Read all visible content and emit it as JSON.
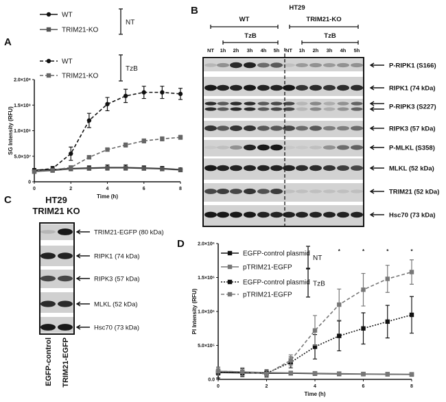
{
  "panels": {
    "a": "A",
    "b": "B",
    "c": "C",
    "d": "D"
  },
  "chart_data": [
    {
      "type": "line",
      "panel": "A",
      "xlabel": "Time (h)",
      "ylabel": "SG Intensity (RFU)",
      "xlim": [
        0,
        8
      ],
      "ylim": [
        0,
        200000000
      ],
      "xticks": [
        "0",
        "2",
        "4",
        "6",
        "8"
      ],
      "yticks": [
        "0",
        "5.0×10⁷",
        "1.0×10⁸",
        "1.5×10⁸",
        "2.0×10⁸"
      ],
      "x": [
        0,
        1,
        2,
        3,
        4,
        5,
        6,
        7,
        8
      ],
      "groups": [
        {
          "label": "NT",
          "series": [
            0,
            1
          ]
        },
        {
          "label": "TzB",
          "series": [
            2,
            3
          ]
        }
      ],
      "series": [
        {
          "name": "WT",
          "color": "#111111",
          "marker": "circle",
          "line": "solid",
          "values": [
            23000000,
            24000000,
            26000000,
            27000000,
            28000000,
            28000000,
            27000000,
            26000000,
            24000000
          ],
          "errors": [
            3000000,
            3000000,
            3000000,
            4000000,
            5000000,
            5000000,
            4000000,
            4000000,
            3000000
          ]
        },
        {
          "name": "TRIM21-KO",
          "color": "#555555",
          "marker": "square",
          "line": "solid",
          "values": [
            20000000,
            22000000,
            25000000,
            26000000,
            27000000,
            27000000,
            26000000,
            25000000,
            23000000
          ],
          "errors": [
            2000000,
            2000000,
            2000000,
            3000000,
            3000000,
            3000000,
            3000000,
            3000000,
            3000000
          ]
        },
        {
          "name": "WT",
          "color": "#111111",
          "marker": "circle",
          "line": "dashed",
          "values": [
            22000000,
            26000000,
            55000000,
            120000000,
            152000000,
            168000000,
            175000000,
            175000000,
            172000000
          ],
          "errors": [
            3000000,
            4000000,
            13000000,
            14000000,
            13000000,
            13000000,
            12000000,
            12000000,
            11000000
          ]
        },
        {
          "name": "TRIM21-KO",
          "color": "#666666",
          "marker": "square",
          "line": "dashed",
          "values": [
            20000000,
            23000000,
            28000000,
            48000000,
            63000000,
            72000000,
            80000000,
            84000000,
            87000000
          ],
          "errors": [
            2000000,
            2000000,
            3000000,
            3000000,
            3000000,
            4000000,
            4000000,
            4000000,
            4000000
          ]
        }
      ]
    },
    {
      "type": "line",
      "panel": "D",
      "xlabel": "Time (h)",
      "ylabel": "PI Intensity (RFU)",
      "xlim": [
        0,
        8
      ],
      "ylim": [
        0,
        2000000
      ],
      "xticks": [
        "0",
        "2",
        "4",
        "6",
        "8"
      ],
      "yticks": [
        "0.0",
        "5.0×10⁵",
        "1.0×10⁶",
        "1.5×10⁶",
        "2.0×10⁶"
      ],
      "x": [
        0,
        1,
        2,
        3,
        4,
        5,
        6,
        7,
        8
      ],
      "annotations": [
        {
          "x": 5,
          "text": "*"
        },
        {
          "x": 6,
          "text": "*"
        },
        {
          "x": 7,
          "text": "*"
        },
        {
          "x": 8,
          "text": "*"
        }
      ],
      "groups": [
        {
          "label": "NT",
          "series": [
            0,
            1
          ]
        },
        {
          "label": "TzB",
          "series": [
            2,
            3
          ]
        }
      ],
      "series": [
        {
          "name": "EGFP-control plasmid",
          "color": "#111111",
          "marker": "square",
          "line": "solid",
          "values": [
            100000,
            95000,
            90000,
            90000,
            85000,
            80000,
            78000,
            75000,
            72000
          ],
          "errors": [
            30000,
            30000,
            30000,
            20000,
            20000,
            15000,
            15000,
            15000,
            15000
          ]
        },
        {
          "name": "pTRIM21-EGFP",
          "color": "#777777",
          "marker": "square",
          "line": "solid",
          "values": [
            120000,
            110000,
            100000,
            95000,
            90000,
            85000,
            80000,
            78000,
            75000
          ],
          "errors": [
            40000,
            30000,
            30000,
            20000,
            20000,
            15000,
            15000,
            15000,
            15000
          ]
        },
        {
          "name": "EGFP-control plasmid",
          "color": "#111111",
          "marker": "square",
          "line": "dotted",
          "values": [
            100000,
            100000,
            90000,
            250000,
            480000,
            640000,
            750000,
            850000,
            950000
          ],
          "errors": [
            80000,
            60000,
            50000,
            80000,
            180000,
            220000,
            230000,
            240000,
            270000
          ]
        },
        {
          "name": "pTRIM21-EGFP",
          "color": "#777777",
          "marker": "square",
          "line": "dashed",
          "values": [
            120000,
            110000,
            80000,
            280000,
            720000,
            1100000,
            1320000,
            1480000,
            1580000
          ],
          "errors": [
            60000,
            60000,
            50000,
            80000,
            220000,
            230000,
            240000,
            200000,
            180000
          ]
        }
      ]
    }
  ],
  "blot_b": {
    "title": "HT29",
    "groups": [
      {
        "label": "WT",
        "treatment": "TzB"
      },
      {
        "label": "TRIM21-KO",
        "treatment": "TzB"
      }
    ],
    "lanes": [
      "NT",
      "1h",
      "2h",
      "3h",
      "4h",
      "5h",
      "NT",
      "1h",
      "2h",
      "3h",
      "4h",
      "5h"
    ],
    "rows": [
      {
        "label": "P-RIPK1  (S166)",
        "intensity": [
          0.1,
          0.3,
          0.85,
          0.9,
          0.5,
          0.6,
          0.05,
          0.25,
          0.3,
          0.25,
          0.3,
          0.3
        ],
        "double": false
      },
      {
        "label": "RIPK1  (74 kDa)",
        "intensity": [
          0.95,
          0.9,
          0.9,
          0.95,
          0.9,
          0.9,
          0.95,
          0.8,
          0.85,
          0.8,
          0.85,
          0.85
        ],
        "double": false
      },
      {
        "label": "P-RIPK3  (S227)",
        "intensity": [
          0.85,
          0.6,
          0.85,
          0.85,
          0.6,
          0.7,
          0.7,
          0.1,
          0.35,
          0.15,
          0.3,
          0.55
        ],
        "double": true
      },
      {
        "label": "RIPK3  (57 kDa)",
        "intensity": [
          0.8,
          0.6,
          0.8,
          0.8,
          0.6,
          0.6,
          0.7,
          0.5,
          0.6,
          0.4,
          0.4,
          0.5
        ],
        "double": false
      },
      {
        "label": "P-MLKL  (S358)",
        "intensity": [
          0,
          0.05,
          0.3,
          0.9,
          0.95,
          0.95,
          0,
          0,
          0.05,
          0.3,
          0.5,
          0.55
        ],
        "double": false
      },
      {
        "label": "MLKL  (52 kDa)",
        "intensity": [
          0.95,
          0.9,
          0.9,
          0.9,
          0.9,
          0.9,
          0.9,
          0.85,
          0.85,
          0.8,
          0.75,
          0.7
        ],
        "double": false
      },
      {
        "label": "TRIM21  (52 kDa)",
        "intensity": [
          0.7,
          0.75,
          0.7,
          0.8,
          0.65,
          0.75,
          0.05,
          0.05,
          0.05,
          0.05,
          0.05,
          0.05
        ],
        "double": false
      },
      {
        "label": "Hsc70 (73 kDa)",
        "intensity": [
          0.95,
          0.95,
          0.95,
          0.95,
          0.9,
          0.9,
          0.9,
          0.9,
          0.9,
          0.9,
          0.9,
          0.9
        ],
        "double": false
      }
    ]
  },
  "blot_c": {
    "title_line1": "HT29",
    "title_line2": "TRIM21 KO",
    "lanes": [
      "EGFP-control",
      "TRIM21-EGFP"
    ],
    "rows": [
      {
        "label": "TRIM21-EGFP   (80 kDa)",
        "intensity": [
          0.1,
          0.95
        ]
      },
      {
        "label": "RIPK1  (74 kDa)",
        "intensity": [
          0.9,
          0.9
        ]
      },
      {
        "label": "RIPK3  (57 kDa)",
        "intensity": [
          0.7,
          0.7
        ]
      },
      {
        "label": "MLKL  (52 kDa)",
        "intensity": [
          0.85,
          0.85
        ]
      },
      {
        "label": "Hsc70 (73 kDa)",
        "intensity": [
          0.95,
          0.95
        ]
      }
    ]
  }
}
